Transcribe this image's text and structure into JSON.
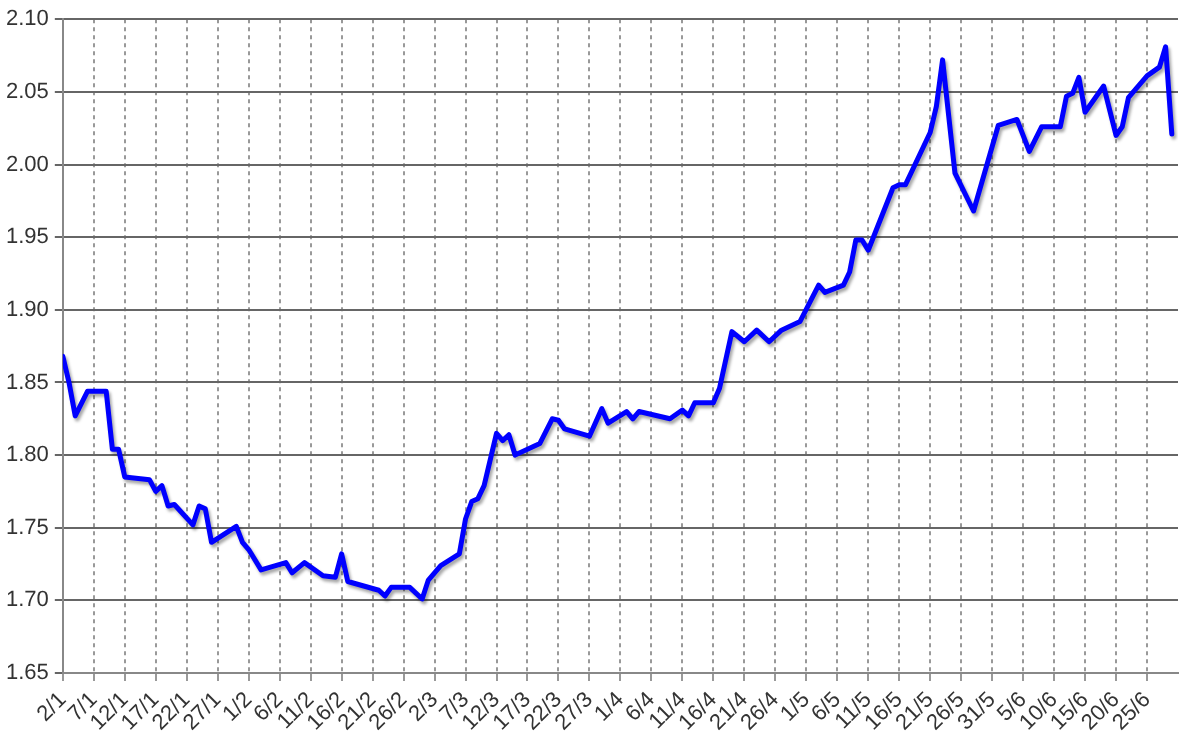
{
  "chart_data": {
    "type": "line",
    "x": [
      "--01-02",
      "--01-03",
      "--01-04",
      "--01-06",
      "--01-09",
      "--01-10",
      "--01-11",
      "--01-12",
      "--01-16",
      "--01-17",
      "--01-18",
      "--01-19",
      "--01-20",
      "--01-23",
      "--01-24",
      "--01-25",
      "--01-26",
      "--01-30",
      "--01-31",
      "--02-01",
      "--02-03",
      "--02-07",
      "--02-08",
      "--02-10",
      "--02-13",
      "--02-15",
      "--02-16",
      "--02-17",
      "--02-22",
      "--02-23",
      "--02-24",
      "--02-27",
      "--02-29",
      "--03-01",
      "--03-03",
      "--03-06",
      "--03-07",
      "--03-08",
      "--03-09",
      "--03-10",
      "--03-12",
      "--03-13",
      "--03-14",
      "--03-15",
      "--03-19",
      "--03-21",
      "--03-22",
      "--03-23",
      "--03-27",
      "--03-29",
      "--03-30",
      "--04-02",
      "--04-03",
      "--04-04",
      "--04-09",
      "--04-11",
      "--04-12",
      "--04-13",
      "--04-16",
      "--04-17",
      "--04-19",
      "--04-21",
      "--04-23",
      "--04-25",
      "--04-27",
      "--04-30",
      "--05-03",
      "--05-04",
      "--05-07",
      "--05-08",
      "--05-09",
      "--05-10",
      "--05-11",
      "--05-15",
      "--05-16",
      "--05-17",
      "--05-21",
      "--05-22",
      "--05-23",
      "--05-25",
      "--05-28",
      "--06-01",
      "--06-04",
      "--06-06",
      "--06-08",
      "--06-11",
      "--06-12",
      "--06-13",
      "--06-14",
      "--06-15",
      "--06-18",
      "--06-20",
      "--06-21",
      "--06-22",
      "--06-25",
      "--06-27",
      "--06-28",
      "--06-29"
    ],
    "series": [
      {
        "color": "#0000ff",
        "values": [
          1.868,
          1.85,
          1.827,
          1.844,
          1.844,
          1.804,
          1.804,
          1.785,
          1.783,
          1.775,
          1.779,
          1.765,
          1.766,
          1.752,
          1.765,
          1.763,
          1.74,
          1.751,
          1.74,
          1.735,
          1.721,
          1.726,
          1.719,
          1.726,
          1.717,
          1.716,
          1.732,
          1.713,
          1.707,
          1.703,
          1.709,
          1.709,
          1.701,
          1.714,
          1.724,
          1.732,
          1.756,
          1.768,
          1.77,
          1.779,
          1.815,
          1.81,
          1.814,
          1.8,
          1.808,
          1.825,
          1.824,
          1.818,
          1.813,
          1.832,
          1.822,
          1.83,
          1.825,
          1.83,
          1.825,
          1.831,
          1.827,
          1.836,
          1.836,
          1.846,
          1.885,
          1.878,
          1.886,
          1.878,
          1.886,
          1.892,
          1.917,
          1.912,
          1.917,
          1.926,
          1.948,
          1.948,
          1.941,
          1.984,
          1.986,
          1.986,
          2.022,
          2.04,
          2.072,
          1.994,
          1.968,
          2.027,
          2.031,
          2.009,
          2.026,
          2.026,
          2.047,
          2.049,
          2.06,
          2.036,
          2.054,
          2.02,
          2.026,
          2.046,
          2.061,
          2.067,
          2.081,
          2.021
        ]
      }
    ],
    "xlim": [
      "--01-02",
      "--06-30"
    ],
    "xticks": [
      {
        "value": "--01-02",
        "label": "2/1"
      },
      {
        "value": "--01-07",
        "label": "7/1"
      },
      {
        "value": "--01-12",
        "label": "12/1"
      },
      {
        "value": "--01-17",
        "label": "17/1"
      },
      {
        "value": "--01-22",
        "label": "22/1"
      },
      {
        "value": "--01-27",
        "label": "27/1"
      },
      {
        "value": "--02-01",
        "label": "1/2"
      },
      {
        "value": "--02-06",
        "label": "6/2"
      },
      {
        "value": "--02-11",
        "label": "11/2"
      },
      {
        "value": "--02-16",
        "label": "16/2"
      },
      {
        "value": "--02-21",
        "label": "21/2"
      },
      {
        "value": "--02-26",
        "label": "26/2"
      },
      {
        "value": "--03-02",
        "label": "2/3"
      },
      {
        "value": "--03-07",
        "label": "7/3"
      },
      {
        "value": "--03-12",
        "label": "12/3"
      },
      {
        "value": "--03-17",
        "label": "17/3"
      },
      {
        "value": "--03-22",
        "label": "22/3"
      },
      {
        "value": "--03-27",
        "label": "27/3"
      },
      {
        "value": "--04-01",
        "label": "1/4"
      },
      {
        "value": "--04-06",
        "label": "6/4"
      },
      {
        "value": "--04-11",
        "label": "11/4"
      },
      {
        "value": "--04-16",
        "label": "16/4"
      },
      {
        "value": "--04-21",
        "label": "21/4"
      },
      {
        "value": "--04-26",
        "label": "26/4"
      },
      {
        "value": "--05-01",
        "label": "1/5"
      },
      {
        "value": "--05-06",
        "label": "6/5"
      },
      {
        "value": "--05-11",
        "label": "11/5"
      },
      {
        "value": "--05-16",
        "label": "16/5"
      },
      {
        "value": "--05-21",
        "label": "21/5"
      },
      {
        "value": "--05-26",
        "label": "26/5"
      },
      {
        "value": "--05-31",
        "label": "31/5"
      },
      {
        "value": "--06-05",
        "label": "5/6"
      },
      {
        "value": "--06-10",
        "label": "10/6"
      },
      {
        "value": "--06-15",
        "label": "15/6"
      },
      {
        "value": "--06-20",
        "label": "20/6"
      },
      {
        "value": "--06-25",
        "label": "25/6"
      }
    ],
    "ylim": [
      1.65,
      2.1
    ],
    "yticks": [
      {
        "value": 1.65,
        "label": "1.65"
      },
      {
        "value": 1.7,
        "label": "1.70"
      },
      {
        "value": 1.75,
        "label": "1.75"
      },
      {
        "value": 1.8,
        "label": "1.80"
      },
      {
        "value": 1.85,
        "label": "1.85"
      },
      {
        "value": 1.9,
        "label": "1.90"
      },
      {
        "value": 1.95,
        "label": "1.95"
      },
      {
        "value": 2.0,
        "label": "2.00"
      },
      {
        "value": 2.05,
        "label": "2.05"
      },
      {
        "value": 2.1,
        "label": "2.10"
      }
    ],
    "grid": true
  }
}
